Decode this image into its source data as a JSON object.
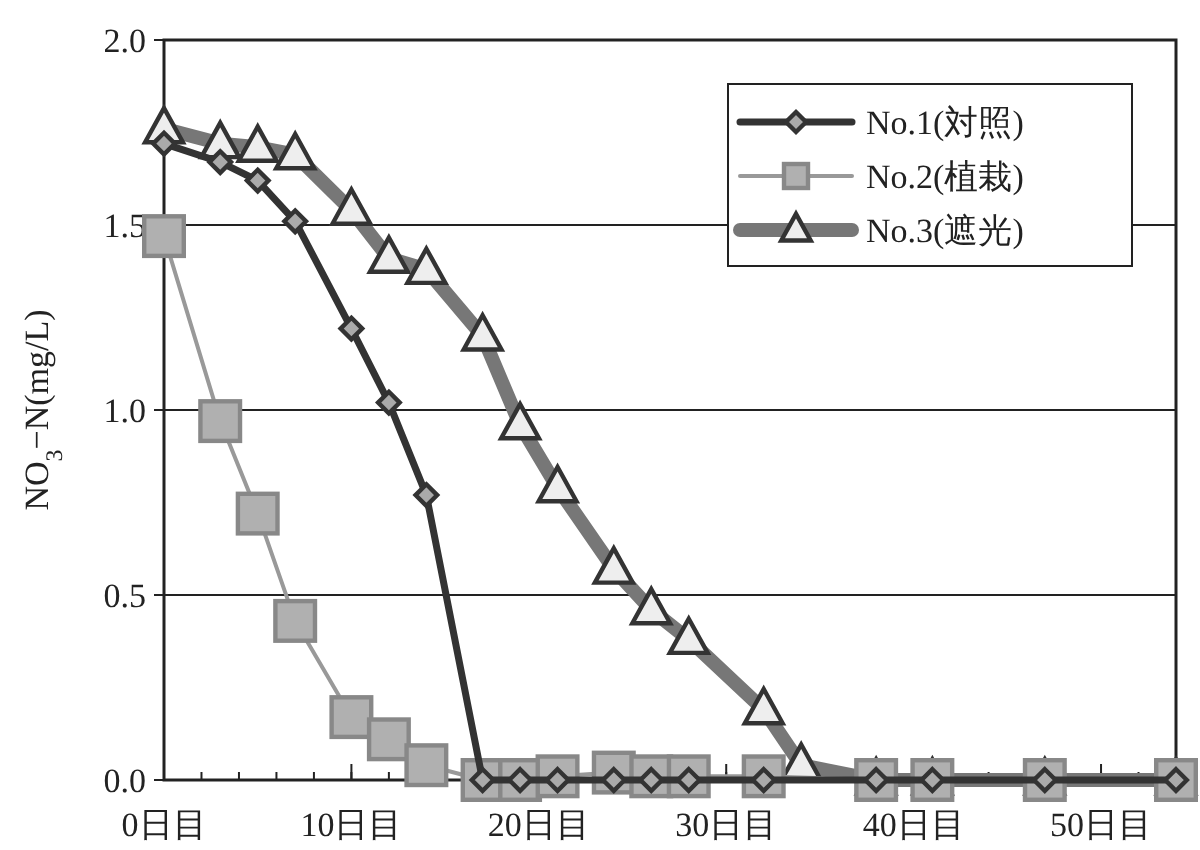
{
  "chart_data": {
    "type": "line",
    "ylabel": "NO$_{3}$−N(mg/L)",
    "xlim": [
      0,
      54
    ],
    "ylim": [
      0,
      2.0
    ],
    "xticks": [
      {
        "value": 0,
        "label": "0日目"
      },
      {
        "value": 10,
        "label": "10日目"
      },
      {
        "value": 20,
        "label": "20日目"
      },
      {
        "value": 30,
        "label": "30日目"
      },
      {
        "value": 40,
        "label": "40日目"
      },
      {
        "value": 50,
        "label": "50日目"
      }
    ],
    "yticks": [
      {
        "value": 0,
        "label": "0.0"
      },
      {
        "value": 0.5,
        "label": "0.5"
      },
      {
        "value": 1.0,
        "label": "1.0"
      },
      {
        "value": 1.5,
        "label": "1.5"
      },
      {
        "value": 2.0,
        "label": "2.0"
      }
    ],
    "grid": "y",
    "legend": "top right",
    "series": [
      {
        "name": "No.1(対照)",
        "color": "#333333",
        "marker": "diamond",
        "x": [
          0,
          3,
          5,
          7,
          10,
          12,
          14,
          17,
          19,
          21,
          24,
          26,
          28,
          32,
          38,
          41,
          47,
          54
        ],
        "values": [
          1.72,
          1.67,
          1.62,
          1.51,
          1.22,
          1.02,
          0.77,
          0.0,
          0.0,
          0.0,
          0.0,
          0.0,
          0.0,
          0.0,
          0.0,
          0.0,
          0.0,
          0.0
        ]
      },
      {
        "name": "No.2(植栽)",
        "color": "#999999",
        "marker": "square",
        "x": [
          0,
          3,
          5,
          7,
          10,
          12,
          14,
          17,
          19,
          21,
          24,
          26,
          28,
          32,
          38,
          41,
          47,
          54
        ],
        "values": [
          1.47,
          0.97,
          0.72,
          0.43,
          0.17,
          0.11,
          0.04,
          0.0,
          0.0,
          0.01,
          0.02,
          0.01,
          0.01,
          0.01,
          0.0,
          0.0,
          0.0,
          0.0
        ]
      },
      {
        "name": "No.3(遮光)",
        "color": "#777777",
        "marker": "triangle",
        "x": [
          0,
          3,
          5,
          7,
          10,
          12,
          14,
          17,
          19,
          21,
          24,
          26,
          28,
          32,
          34,
          38,
          41,
          47,
          54
        ],
        "values": [
          1.76,
          1.72,
          1.71,
          1.69,
          1.54,
          1.41,
          1.38,
          1.2,
          0.96,
          0.79,
          0.57,
          0.46,
          0.38,
          0.19,
          0.04,
          0.0,
          0.0,
          0.0,
          0.0
        ]
      }
    ]
  }
}
